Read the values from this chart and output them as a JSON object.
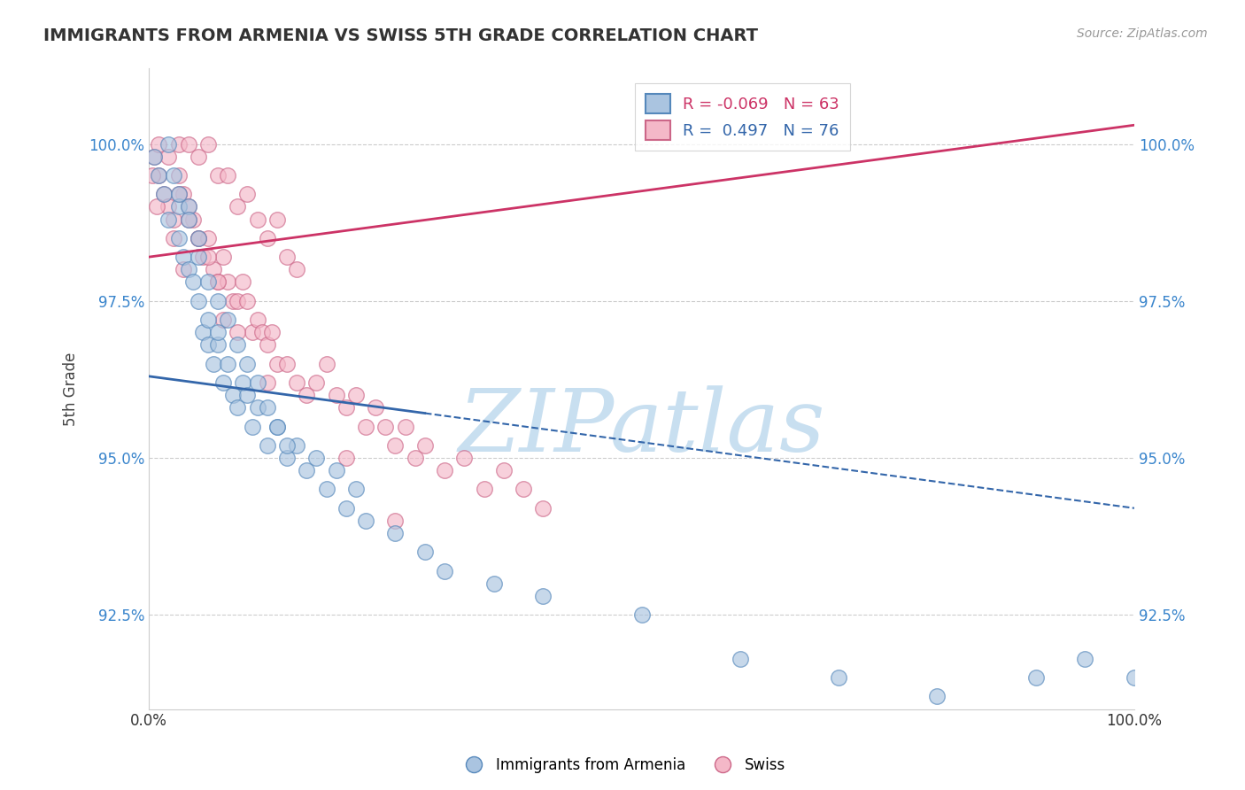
{
  "title": "IMMIGRANTS FROM ARMENIA VS SWISS 5TH GRADE CORRELATION CHART",
  "source": "Source: ZipAtlas.com",
  "ylabel": "5th Grade",
  "ytick_values": [
    92.5,
    95.0,
    97.5,
    100.0
  ],
  "xmin": 0.0,
  "xmax": 100.0,
  "ymin": 91.0,
  "ymax": 101.2,
  "legend_blue_label": "Immigrants from Armenia",
  "legend_pink_label": "Swiss",
  "R_blue": -0.069,
  "N_blue": 63,
  "R_pink": 0.497,
  "N_pink": 76,
  "blue_color": "#aac4e0",
  "pink_color": "#f4b8c8",
  "blue_edge_color": "#5588bb",
  "pink_edge_color": "#cc6688",
  "blue_line_color": "#3366aa",
  "pink_line_color": "#cc3366",
  "watermark_text": "ZIPatlas",
  "watermark_color": "#c8dff0",
  "blue_line_start_y": 96.3,
  "blue_line_end_y": 94.2,
  "pink_line_start_y": 98.2,
  "pink_line_end_y": 100.3,
  "blue_solid_end_x": 28.0,
  "blue_scatter_x": [
    0.5,
    1.0,
    1.5,
    2.0,
    2.5,
    3.0,
    3.0,
    3.5,
    4.0,
    4.0,
    4.5,
    5.0,
    5.0,
    5.5,
    6.0,
    6.0,
    6.5,
    7.0,
    7.0,
    7.5,
    8.0,
    8.5,
    9.0,
    9.5,
    10.0,
    10.5,
    11.0,
    12.0,
    13.0,
    14.0,
    15.0,
    16.0,
    17.0,
    18.0,
    19.0,
    20.0,
    21.0,
    22.0,
    25.0,
    28.0,
    30.0,
    35.0,
    40.0,
    50.0,
    60.0,
    70.0,
    80.0,
    90.0,
    95.0,
    100.0,
    2.0,
    3.0,
    4.0,
    5.0,
    6.0,
    7.0,
    8.0,
    9.0,
    10.0,
    11.0,
    12.0,
    13.0,
    14.0
  ],
  "blue_scatter_y": [
    99.8,
    99.5,
    99.2,
    98.8,
    99.5,
    99.0,
    98.5,
    98.2,
    99.0,
    98.0,
    97.8,
    97.5,
    98.2,
    97.0,
    96.8,
    97.2,
    96.5,
    96.8,
    97.0,
    96.2,
    96.5,
    96.0,
    95.8,
    96.2,
    96.0,
    95.5,
    95.8,
    95.2,
    95.5,
    95.0,
    95.2,
    94.8,
    95.0,
    94.5,
    94.8,
    94.2,
    94.5,
    94.0,
    93.8,
    93.5,
    93.2,
    93.0,
    92.8,
    92.5,
    91.8,
    91.5,
    91.2,
    91.5,
    91.8,
    91.5,
    100.0,
    99.2,
    98.8,
    98.5,
    97.8,
    97.5,
    97.2,
    96.8,
    96.5,
    96.2,
    95.8,
    95.5,
    95.2
  ],
  "pink_scatter_x": [
    0.5,
    1.0,
    1.5,
    2.0,
    2.5,
    3.0,
    3.5,
    4.0,
    4.5,
    5.0,
    5.5,
    6.0,
    6.5,
    7.0,
    7.5,
    8.0,
    8.5,
    9.0,
    9.5,
    10.0,
    10.5,
    11.0,
    11.5,
    12.0,
    12.5,
    13.0,
    14.0,
    15.0,
    16.0,
    17.0,
    18.0,
    19.0,
    20.0,
    21.0,
    22.0,
    23.0,
    24.0,
    25.0,
    26.0,
    27.0,
    28.0,
    30.0,
    32.0,
    34.0,
    36.0,
    38.0,
    40.0,
    1.0,
    2.0,
    3.0,
    4.0,
    5.0,
    6.0,
    7.0,
    8.0,
    9.0,
    10.0,
    11.0,
    12.0,
    13.0,
    14.0,
    15.0,
    3.0,
    4.0,
    5.0,
    6.0,
    7.0,
    0.3,
    0.8,
    2.5,
    3.5,
    7.5,
    9.0,
    12.0,
    20.0,
    25.0
  ],
  "pink_scatter_y": [
    99.8,
    99.5,
    99.2,
    99.0,
    98.8,
    99.5,
    99.2,
    99.0,
    98.8,
    98.5,
    98.2,
    98.5,
    98.0,
    97.8,
    98.2,
    97.8,
    97.5,
    97.5,
    97.8,
    97.5,
    97.0,
    97.2,
    97.0,
    96.8,
    97.0,
    96.5,
    96.5,
    96.2,
    96.0,
    96.2,
    96.5,
    96.0,
    95.8,
    96.0,
    95.5,
    95.8,
    95.5,
    95.2,
    95.5,
    95.0,
    95.2,
    94.8,
    95.0,
    94.5,
    94.8,
    94.5,
    94.2,
    100.0,
    99.8,
    100.0,
    100.0,
    99.8,
    100.0,
    99.5,
    99.5,
    99.0,
    99.2,
    98.8,
    98.5,
    98.8,
    98.2,
    98.0,
    99.2,
    98.8,
    98.5,
    98.2,
    97.8,
    99.5,
    99.0,
    98.5,
    98.0,
    97.2,
    97.0,
    96.2,
    95.0,
    94.0
  ]
}
